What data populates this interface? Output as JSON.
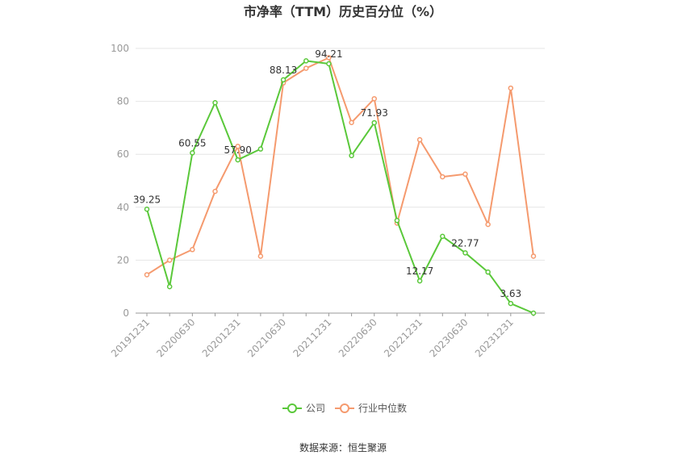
{
  "chart_data": {
    "type": "line",
    "title": "市净率（TTM）历史百分位（%）",
    "xlabel": "",
    "ylabel": "",
    "ylim": [
      0,
      100
    ],
    "yticks": [
      "0",
      "20",
      "40",
      "60",
      "80",
      "100"
    ],
    "grid": true,
    "legend_position": "bottom",
    "categories": [
      "20191231",
      "20200331",
      "20200630",
      "20200930",
      "20201231",
      "20210331",
      "20210630",
      "20210930",
      "20211231",
      "20220331",
      "20220630",
      "20220930",
      "20221231",
      "20230331",
      "20230630",
      "20230930",
      "20231231",
      "20240331"
    ],
    "xtick_labels": [
      "20191231",
      "20200630",
      "20201231",
      "20210630",
      "20211231",
      "20220630",
      "20221231",
      "20230630",
      "20231231"
    ],
    "series": [
      {
        "name": "公司",
        "color": "#5ac83a",
        "values": [
          39.25,
          10.0,
          60.55,
          79.5,
          57.9,
          62.0,
          88.13,
          95.3,
          94.21,
          59.5,
          71.93,
          35.0,
          12.17,
          29.0,
          22.77,
          15.5,
          3.63,
          0.0
        ]
      },
      {
        "name": "行业中位数",
        "color": "#f59a6e",
        "values": [
          14.5,
          20.0,
          24.0,
          46.0,
          63.0,
          21.5,
          87.0,
          92.5,
          96.5,
          72.0,
          81.0,
          34.0,
          65.5,
          51.5,
          52.5,
          33.5,
          85.0,
          21.5
        ]
      }
    ],
    "data_labels": [
      {
        "series": 0,
        "index": 0,
        "text": "39.25"
      },
      {
        "series": 0,
        "index": 2,
        "text": "60.55"
      },
      {
        "series": 0,
        "index": 4,
        "text": "57.90"
      },
      {
        "series": 0,
        "index": 6,
        "text": "88.13"
      },
      {
        "series": 0,
        "index": 8,
        "text": "94.21"
      },
      {
        "series": 0,
        "index": 10,
        "text": "71.93"
      },
      {
        "series": 0,
        "index": 12,
        "text": "12.17"
      },
      {
        "series": 0,
        "index": 14,
        "text": "22.77"
      },
      {
        "series": 0,
        "index": 16,
        "text": "3.63"
      }
    ],
    "source": "数据来源：恒生聚源"
  }
}
